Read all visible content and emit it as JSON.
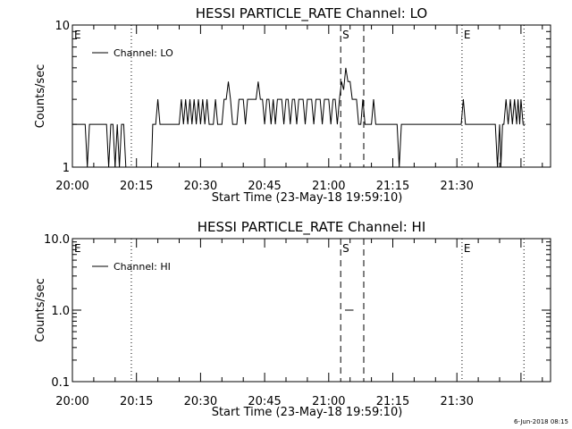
{
  "footer": "6-Jun-2018 08:15",
  "chart_data": [
    {
      "type": "line",
      "title": "HESSI PARTICLE_RATE Channel: LO",
      "xlabel": "Start Time (23-May-18 19:59:10)",
      "ylabel": "Counts/sec",
      "yscale": "log",
      "ylim": [
        1,
        10
      ],
      "xlim_min": [
        0,
        115
      ],
      "y_tick_labels": [
        "10",
        "1"
      ],
      "x_tick_labels": [
        "20:00",
        "20:15",
        "20:30",
        "20:45",
        "21:00",
        "21:15",
        "21:30"
      ],
      "legend": [
        "Channel: LO"
      ],
      "markers": [
        {
          "label": "E",
          "x_min": 0,
          "style": "dotted"
        },
        {
          "label": "",
          "x_min": 13.8,
          "style": "dotted"
        },
        {
          "label": "S",
          "x_min": 62.8,
          "style": "dashed"
        },
        {
          "label": "",
          "x_min": 68.2,
          "style": "dashed"
        },
        {
          "label": "E",
          "x_min": 91.2,
          "style": "dotted"
        },
        {
          "label": "",
          "x_min": 105.7,
          "style": "dotted"
        }
      ],
      "series": [
        {
          "name": "Channel: LO",
          "values": [
            [
              0,
              2
            ],
            [
              3,
              2
            ],
            [
              3.5,
              1
            ],
            [
              4,
              2
            ],
            [
              8,
              2
            ],
            [
              8.5,
              1
            ],
            [
              9,
              2
            ],
            [
              9.5,
              2
            ],
            [
              10,
              1
            ],
            [
              10.5,
              2
            ],
            [
              11,
              1
            ],
            [
              11.5,
              2
            ],
            [
              12,
              2
            ],
            [
              12.5,
              1
            ],
            [
              13,
              1
            ],
            [
              18.5,
              1
            ],
            [
              18.8,
              2
            ],
            [
              19.5,
              2
            ],
            [
              20,
              3
            ],
            [
              20.5,
              2
            ],
            [
              25,
              2
            ],
            [
              25.5,
              3
            ],
            [
              26,
              2
            ],
            [
              26.5,
              3
            ],
            [
              27,
              2
            ],
            [
              27.5,
              3
            ],
            [
              28,
              2
            ],
            [
              28.5,
              3
            ],
            [
              29,
              2
            ],
            [
              29.5,
              3
            ],
            [
              30,
              2
            ],
            [
              30.5,
              3
            ],
            [
              31,
              2
            ],
            [
              31.5,
              3
            ],
            [
              32,
              2
            ],
            [
              33,
              2
            ],
            [
              33.5,
              3
            ],
            [
              34,
              2
            ],
            [
              35,
              2
            ],
            [
              35.5,
              3
            ],
            [
              36,
              3
            ],
            [
              36.5,
              4
            ],
            [
              37,
              3
            ],
            [
              37.5,
              2
            ],
            [
              38.5,
              2
            ],
            [
              39,
              3
            ],
            [
              40,
              3
            ],
            [
              40.5,
              2
            ],
            [
              41,
              3
            ],
            [
              43,
              3
            ],
            [
              43.5,
              4
            ],
            [
              44,
              3
            ],
            [
              44.5,
              3
            ],
            [
              45,
              2
            ],
            [
              45.5,
              3
            ],
            [
              46,
              3
            ],
            [
              46.5,
              2
            ],
            [
              47,
              3
            ],
            [
              47.5,
              2
            ],
            [
              48,
              3
            ],
            [
              49,
              3
            ],
            [
              49.5,
              2
            ],
            [
              50,
              3
            ],
            [
              50.5,
              3
            ],
            [
              51,
              2
            ],
            [
              51.5,
              3
            ],
            [
              52,
              3
            ],
            [
              52.5,
              2
            ],
            [
              53,
              3
            ],
            [
              54,
              3
            ],
            [
              54.5,
              2
            ],
            [
              55,
              3
            ],
            [
              56,
              3
            ],
            [
              56.5,
              2
            ],
            [
              57,
              3
            ],
            [
              58,
              3
            ],
            [
              58.5,
              2
            ],
            [
              59,
              3
            ],
            [
              60,
              3
            ],
            [
              60.5,
              2
            ],
            [
              61,
              3
            ],
            [
              61.5,
              3
            ],
            [
              62,
              2
            ],
            [
              62.5,
              3
            ],
            [
              63,
              4
            ],
            [
              63.5,
              3.5
            ],
            [
              64,
              5
            ],
            [
              64.5,
              4
            ],
            [
              65,
              4
            ],
            [
              65.5,
              3
            ],
            [
              66,
              3
            ],
            [
              66.5,
              3
            ],
            [
              67,
              2
            ],
            [
              67.5,
              2
            ],
            [
              68,
              3
            ],
            [
              68.5,
              2
            ],
            [
              70,
              2
            ],
            [
              70.5,
              3
            ],
            [
              71,
              2
            ],
            [
              76,
              2
            ],
            [
              76.5,
              1
            ],
            [
              77,
              2
            ],
            [
              91,
              2
            ],
            [
              91.5,
              3
            ],
            [
              92,
              2
            ],
            [
              99,
              2
            ],
            [
              99.5,
              1
            ],
            [
              100,
              2
            ],
            [
              100.3,
              1
            ],
            [
              100.7,
              2
            ],
            [
              101,
              2
            ],
            [
              101.5,
              3
            ],
            [
              102,
              2
            ],
            [
              102.5,
              3
            ],
            [
              103,
              2
            ],
            [
              103.5,
              3
            ],
            [
              104,
              2
            ],
            [
              104.3,
              3
            ],
            [
              104.7,
              2
            ],
            [
              105,
              3
            ],
            [
              105.5,
              2
            ],
            [
              106,
              2
            ]
          ]
        }
      ]
    },
    {
      "type": "line",
      "title": "HESSI PARTICLE_RATE Channel: HI",
      "xlabel": "Start Time (23-May-18 19:59:10)",
      "ylabel": "Counts/sec",
      "yscale": "log",
      "ylim": [
        0.1,
        10
      ],
      "xlim_min": [
        0,
        115
      ],
      "y_tick_labels": [
        "10.0",
        "1.0",
        "0.1"
      ],
      "x_tick_labels": [
        "20:00",
        "20:15",
        "20:30",
        "20:45",
        "21:00",
        "21:15",
        "21:30"
      ],
      "legend": [
        "Channel: HI"
      ],
      "markers": [
        {
          "label": "E",
          "x_min": 0,
          "style": "dotted"
        },
        {
          "label": "",
          "x_min": 13.8,
          "style": "dotted"
        },
        {
          "label": "S",
          "x_min": 62.8,
          "style": "dashed"
        },
        {
          "label": "",
          "x_min": 68.2,
          "style": "dashed"
        },
        {
          "label": "E",
          "x_min": 91.2,
          "style": "dotted"
        },
        {
          "label": "",
          "x_min": 105.7,
          "style": "dotted"
        }
      ],
      "series": [
        {
          "name": "Channel: HI",
          "values": [
            [
              63.8,
              1
            ],
            [
              65.8,
              1
            ]
          ]
        }
      ]
    }
  ]
}
